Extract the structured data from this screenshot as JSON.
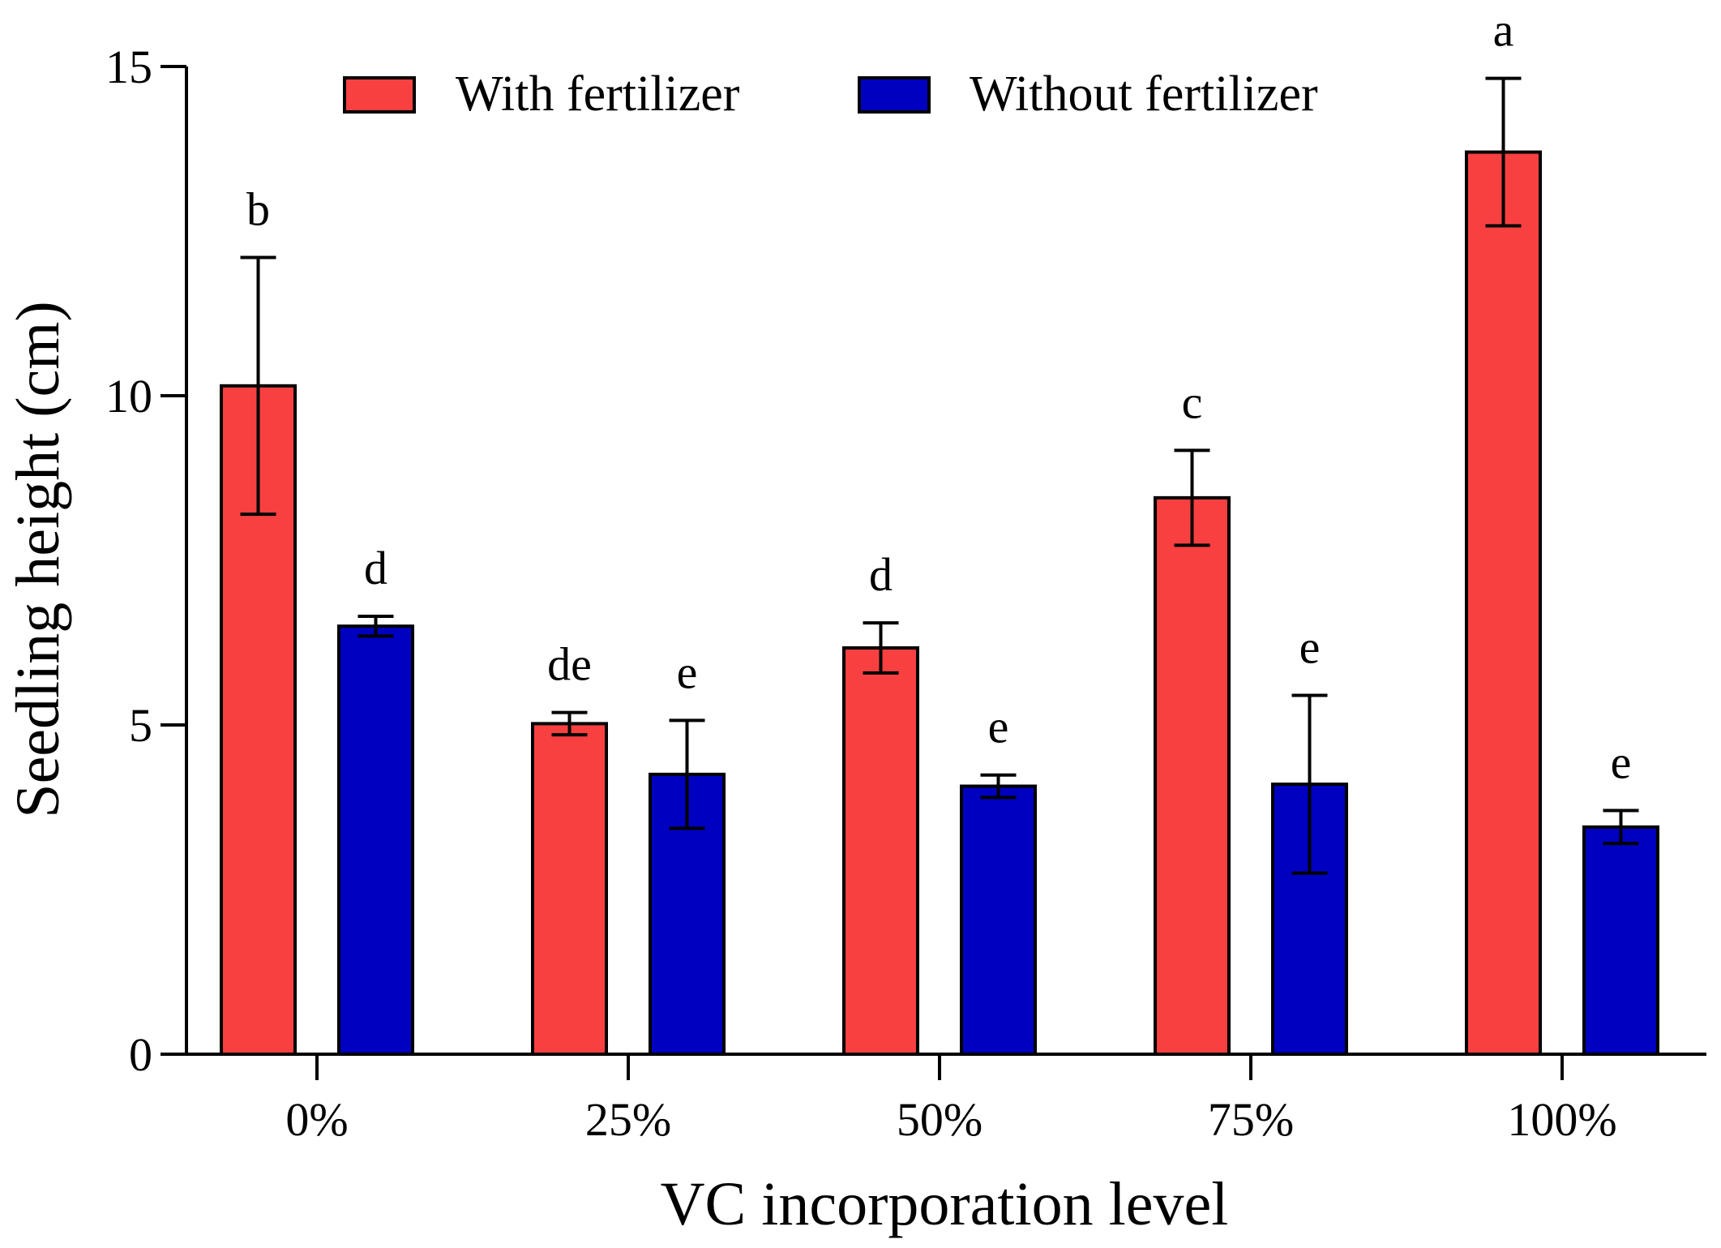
{
  "chart_data": {
    "type": "bar",
    "title": "",
    "xlabel": "VC incorporation level",
    "ylabel": "Seedling height (cm)",
    "ylim": [
      0,
      15
    ],
    "yticks": [
      0,
      5,
      10,
      15
    ],
    "categories": [
      "0%",
      "25%",
      "50%",
      "75%",
      "100%"
    ],
    "grid": false,
    "legend_position": "top",
    "series": [
      {
        "name": "With fertilizer",
        "color": "#f84040",
        "values": [
          10.15,
          5.02,
          6.17,
          8.45,
          13.7
        ],
        "errors": [
          1.95,
          0.17,
          0.38,
          0.72,
          1.12
        ],
        "letters": [
          "b",
          "de",
          "d",
          "c",
          "a"
        ]
      },
      {
        "name": "Without fertilizer",
        "color": "#0000c0",
        "values": [
          6.5,
          4.25,
          4.07,
          4.1,
          3.45
        ],
        "errors": [
          0.15,
          0.82,
          0.17,
          1.35,
          0.25
        ],
        "letters": [
          "d",
          "e",
          "e",
          "e",
          "e"
        ]
      }
    ]
  }
}
